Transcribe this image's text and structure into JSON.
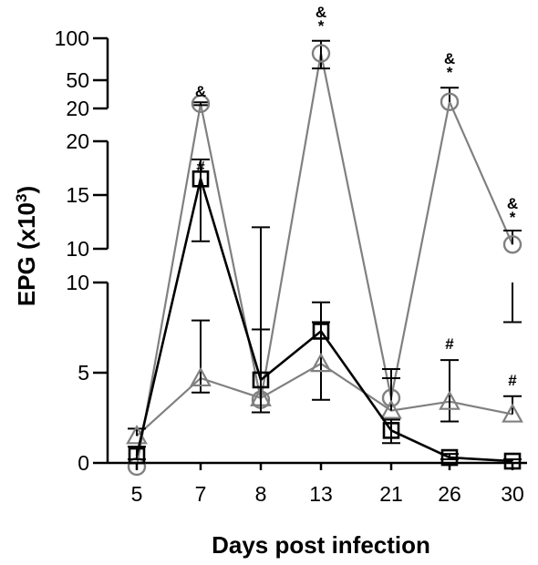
{
  "chart_data": {
    "type": "line",
    "title": "",
    "xlabel": "Days post infection",
    "ylabel": "EPG (x10",
    "ylabel_superscript": "3",
    "ylabel_suffix": ")",
    "categories": [
      "5",
      "7",
      "8",
      "13",
      "21",
      "26",
      "30"
    ],
    "y_axis_segments": [
      {
        "range": [
          0,
          10
        ],
        "ticks": [
          "0",
          "5",
          "10"
        ]
      },
      {
        "range": [
          10,
          20
        ],
        "ticks": [
          "10",
          "15",
          "20"
        ]
      },
      {
        "range": [
          20,
          100
        ],
        "ticks": [
          "20",
          "50",
          "100"
        ]
      }
    ],
    "grid": false,
    "legend": "none",
    "series": [
      {
        "marker": "square",
        "color": "#000000",
        "values": [
          0.4,
          16.5,
          4.6,
          7.3,
          1.8,
          0.3,
          0.1
        ],
        "err_up": [
          0.5,
          1.8,
          2.8,
          1.6,
          0.6,
          0.2,
          0.1
        ],
        "err_down": [
          0.2,
          5.8,
          1.8,
          0,
          0.7,
          0.1,
          0
        ]
      },
      {
        "marker": "circle",
        "color": "#808080",
        "values": [
          -0.2,
          25,
          3.5,
          82,
          3.6,
          27,
          10.4
        ],
        "err_up": [
          0.2,
          1.5,
          8.5,
          15,
          1.6,
          15,
          1.3
        ],
        "err_down": [
          0,
          1.5,
          0,
          18,
          0,
          0,
          0
        ]
      },
      {
        "marker": "triangle",
        "color": "#808080",
        "values": [
          1.5,
          4.7,
          3.6,
          5.5,
          2.9,
          3.4,
          2.7
        ],
        "err_up": [
          0.4,
          3.2,
          0,
          2.3,
          1.8,
          2.3,
          1.0
        ],
        "err_down": [
          0,
          0.8,
          0.8,
          2.0,
          0,
          1.1,
          0
        ]
      }
    ],
    "orphan_error_bars": [
      {
        "category": "30",
        "y_from": 7.8,
        "y_to": 10
      }
    ],
    "annotations": [
      {
        "category": "7",
        "value": 25,
        "labels": [
          "&"
        ]
      },
      {
        "category": "7",
        "value": 16.5,
        "labels": [
          "#"
        ]
      },
      {
        "category": "13",
        "value": 100,
        "labels": [
          "&",
          "*"
        ]
      },
      {
        "category": "26",
        "value": 45,
        "labels": [
          "&",
          "*"
        ]
      },
      {
        "category": "30",
        "value": 11.8,
        "labels": [
          "&",
          "*"
        ]
      },
      {
        "category": "26",
        "value": 5.9,
        "labels": [
          "#"
        ]
      },
      {
        "category": "30",
        "value": 3.9,
        "labels": [
          "#"
        ]
      }
    ]
  }
}
